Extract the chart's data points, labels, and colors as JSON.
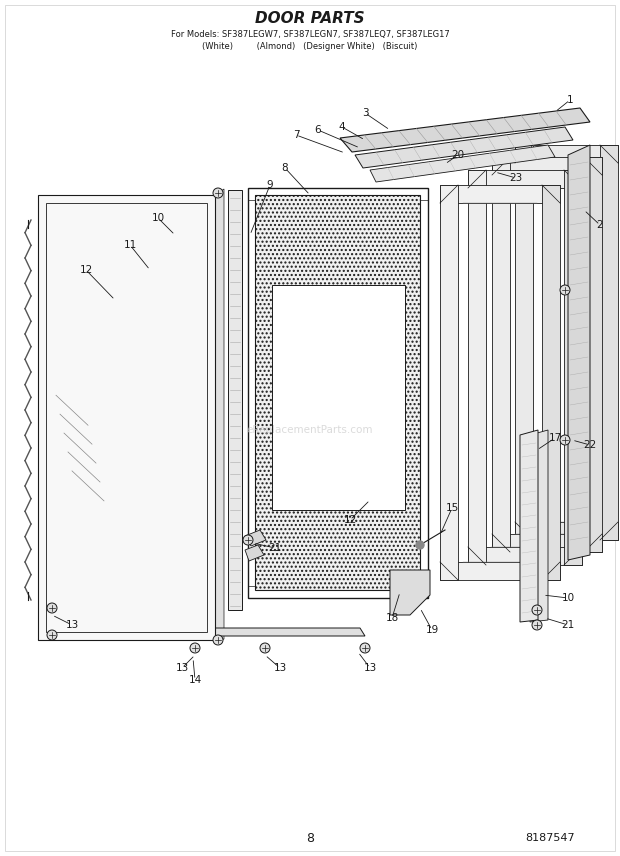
{
  "title": "DOOR PARTS",
  "subtitle_line1": "For Models: SF387LEGW7, SF387LEGN7, SF387LEQ7, SF387LEGN7",
  "subtitle_line2": "(White)       (Almond)  (Designer White)  (Biscuit)",
  "page_number": "8",
  "part_number": "8187547",
  "bg_color": "#ffffff",
  "line_color": "#1a1a1a",
  "watermark": "eReplacementParts.com",
  "figsize": [
    6.2,
    8.56
  ],
  "dpi": 100
}
